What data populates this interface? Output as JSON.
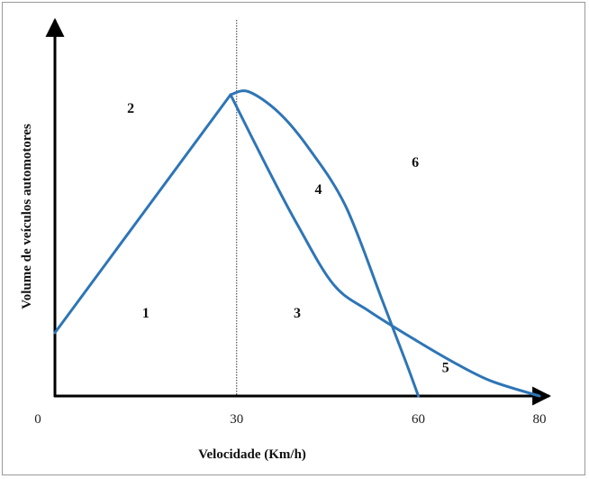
{
  "chart_data": {
    "type": "line",
    "xlabel": "Velocidade (Km/h)",
    "ylabel": "Volume de veículos automotores",
    "x_ticks": [
      "0",
      "30",
      "60",
      "80"
    ],
    "xlim": [
      0,
      80
    ],
    "ylim": [
      0,
      100
    ],
    "grid": false,
    "reference_line": {
      "x": 30,
      "style": "dotted"
    },
    "region_labels": [
      {
        "text": "1",
        "x": 15,
        "y": 26
      },
      {
        "text": "2",
        "x": 12.5,
        "y": 94
      },
      {
        "text": "3",
        "x": 40,
        "y": 26
      },
      {
        "text": "4",
        "x": 43.5,
        "y": 67
      },
      {
        "text": "5",
        "x": 64.5,
        "y": 8
      },
      {
        "text": "6",
        "x": 59.5,
        "y": 76
      }
    ],
    "series": [
      {
        "values": [
          [
            0,
            21
          ],
          [
            29,
            100
          ]
        ]
      },
      {
        "values": [
          [
            29,
            100
          ],
          [
            35,
            76
          ],
          [
            40,
            57
          ],
          [
            46,
            37
          ],
          [
            52,
            28
          ],
          [
            60,
            18
          ],
          [
            66,
            11
          ],
          [
            72,
            5
          ],
          [
            80,
            0
          ]
        ]
      },
      {
        "values": [
          [
            29,
            100
          ],
          [
            32,
            101
          ],
          [
            37,
            94
          ],
          [
            42,
            82
          ],
          [
            48,
            63
          ],
          [
            54,
            32
          ],
          [
            58,
            11
          ],
          [
            60,
            0
          ]
        ]
      }
    ],
    "line_color": "#2e75b6"
  }
}
